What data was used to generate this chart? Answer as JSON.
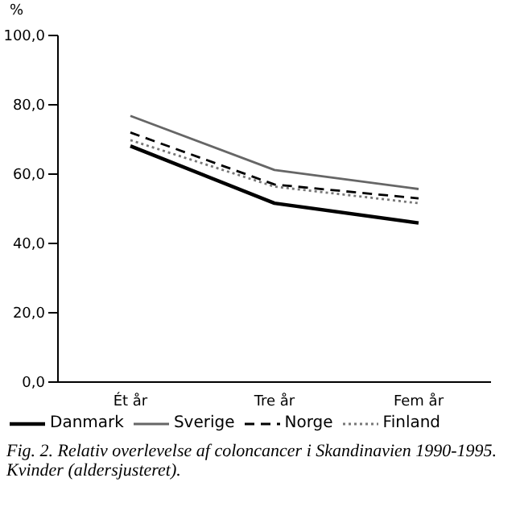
{
  "chart_data": {
    "type": "line",
    "ylabel": "%",
    "categories": [
      "Ét år",
      "Tre år",
      "Fem år"
    ],
    "series": [
      {
        "name": "Danmark",
        "color": "#000000",
        "line_style": "solid",
        "values": [
          68.1,
          51.6,
          45.9
        ]
      },
      {
        "name": "Sverige",
        "color": "#666666",
        "line_style": "solid",
        "values": [
          76.8,
          61.2,
          55.7
        ]
      },
      {
        "name": "Norge",
        "color": "#000000",
        "line_style": "dashed",
        "values": [
          72.0,
          57.0,
          53.0
        ]
      },
      {
        "name": "Finland",
        "color": "#777777",
        "line_style": "dotted",
        "values": [
          69.8,
          56.4,
          51.6
        ]
      }
    ],
    "ylim": [
      0,
      100
    ],
    "yticks": [
      {
        "value": 0,
        "label": "0,0"
      },
      {
        "value": 20,
        "label": "20,0"
      },
      {
        "value": 40,
        "label": "40,0"
      },
      {
        "value": 60,
        "label": "60,0"
      },
      {
        "value": 80,
        "label": "80,0"
      },
      {
        "value": 100,
        "label": "100,0"
      }
    ],
    "legend": "bottom",
    "marker": "none",
    "grid": false,
    "annotations": [
      "Fig. 2. Relativ overlevelse af coloncancer i Skandinavien 1990-1995. Kvinder (aldersjusteret)."
    ]
  }
}
